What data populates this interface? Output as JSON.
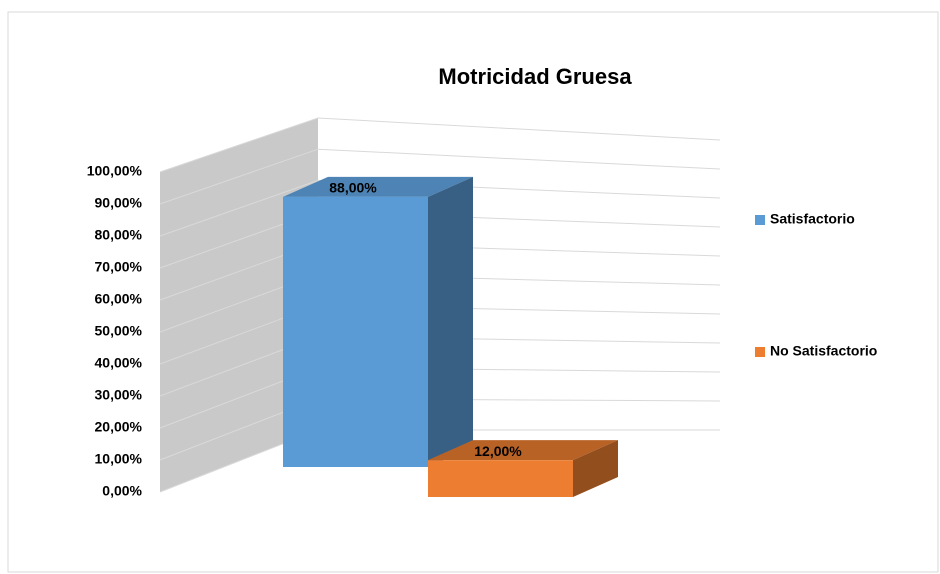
{
  "chart_data": {
    "type": "bar3d",
    "title": "Motricidad Gruesa",
    "categories": [
      null
    ],
    "series": [
      {
        "name": "Satisfactorio",
        "color": "#5b9bd5",
        "values": [
          88
        ],
        "value_labels": [
          "88,00%"
        ]
      },
      {
        "name": "No Satisfactorio",
        "color": "#ed7d31",
        "values": [
          12
        ],
        "value_labels": [
          "12,00%"
        ]
      }
    ],
    "ylim": [
      0,
      100
    ],
    "yticks": [
      {
        "value": 0,
        "label": "0,00%"
      },
      {
        "value": 10,
        "label": "10,00%"
      },
      {
        "value": 20,
        "label": "20,00%"
      },
      {
        "value": 30,
        "label": "30,00%"
      },
      {
        "value": 40,
        "label": "40,00%"
      },
      {
        "value": 50,
        "label": "50,00%"
      },
      {
        "value": 60,
        "label": "60,00%"
      },
      {
        "value": 70,
        "label": "70,00%"
      },
      {
        "value": 80,
        "label": "80,00%"
      },
      {
        "value": 90,
        "label": "90,00%"
      },
      {
        "value": 100,
        "label": "100,00%"
      }
    ],
    "grid": true,
    "legend": "right"
  }
}
